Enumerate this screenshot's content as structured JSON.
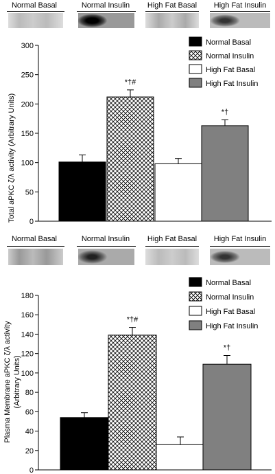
{
  "colors": {
    "normal_basal": "#000000",
    "high_fat_basal": "#ffffff",
    "high_fat_insulin": "#808080",
    "axis": "#000000"
  },
  "blot_top": {
    "labels": [
      "Normal Basal",
      "Normal Insulin",
      "High Fat Basal",
      "High Fat Insulin"
    ]
  },
  "blot_bottom": {
    "labels": [
      "Normal Basal",
      "Normal Insulin",
      "High Fat Basal",
      "High Fat Insulin"
    ]
  },
  "chart_data": [
    {
      "type": "bar",
      "title": "",
      "xlabel": "",
      "ylabel": "Total aPKC ζ/λ activity (Arbitrary Units)",
      "ylim": [
        0,
        300
      ],
      "yticks": [
        0,
        50,
        100,
        150,
        200,
        250,
        300
      ],
      "categories": [
        "Normal Basal",
        "Normal Insulin",
        "High Fat Basal",
        "High Fat Insulin"
      ],
      "values": [
        101,
        212,
        98,
        163
      ],
      "errors": [
        12,
        12,
        9,
        10
      ],
      "annotations": [
        "",
        "*†#",
        "",
        "*†"
      ],
      "fills": [
        "solid-black",
        "crosshatch",
        "white",
        "gray"
      ],
      "legend": {
        "placement": "top-right",
        "entries": [
          "Normal Basal",
          "Normal Insulin",
          "High Fat Basal",
          "High Fat Insulin"
        ]
      },
      "grid": false
    },
    {
      "type": "bar",
      "title": "",
      "xlabel": "",
      "ylabel": "Plasma Membrane aPKC ζ/λ activity (Arbitrary Units)",
      "ylim": [
        0,
        180
      ],
      "yticks": [
        0,
        20,
        40,
        60,
        80,
        100,
        120,
        140,
        160,
        180
      ],
      "categories": [
        "Normal Basal",
        "Normal Insulin",
        "High Fat Basal",
        "High Fat Insulin"
      ],
      "values": [
        54,
        139,
        26,
        109
      ],
      "errors": [
        5,
        8,
        8,
        9
      ],
      "annotations": [
        "",
        "*†#",
        "",
        "*†"
      ],
      "fills": [
        "solid-black",
        "crosshatch",
        "white",
        "gray"
      ],
      "legend": {
        "placement": "top-right",
        "entries": [
          "Normal Basal",
          "Normal Insulin",
          "High Fat Basal",
          "High Fat Insulin"
        ]
      },
      "grid": false
    }
  ]
}
